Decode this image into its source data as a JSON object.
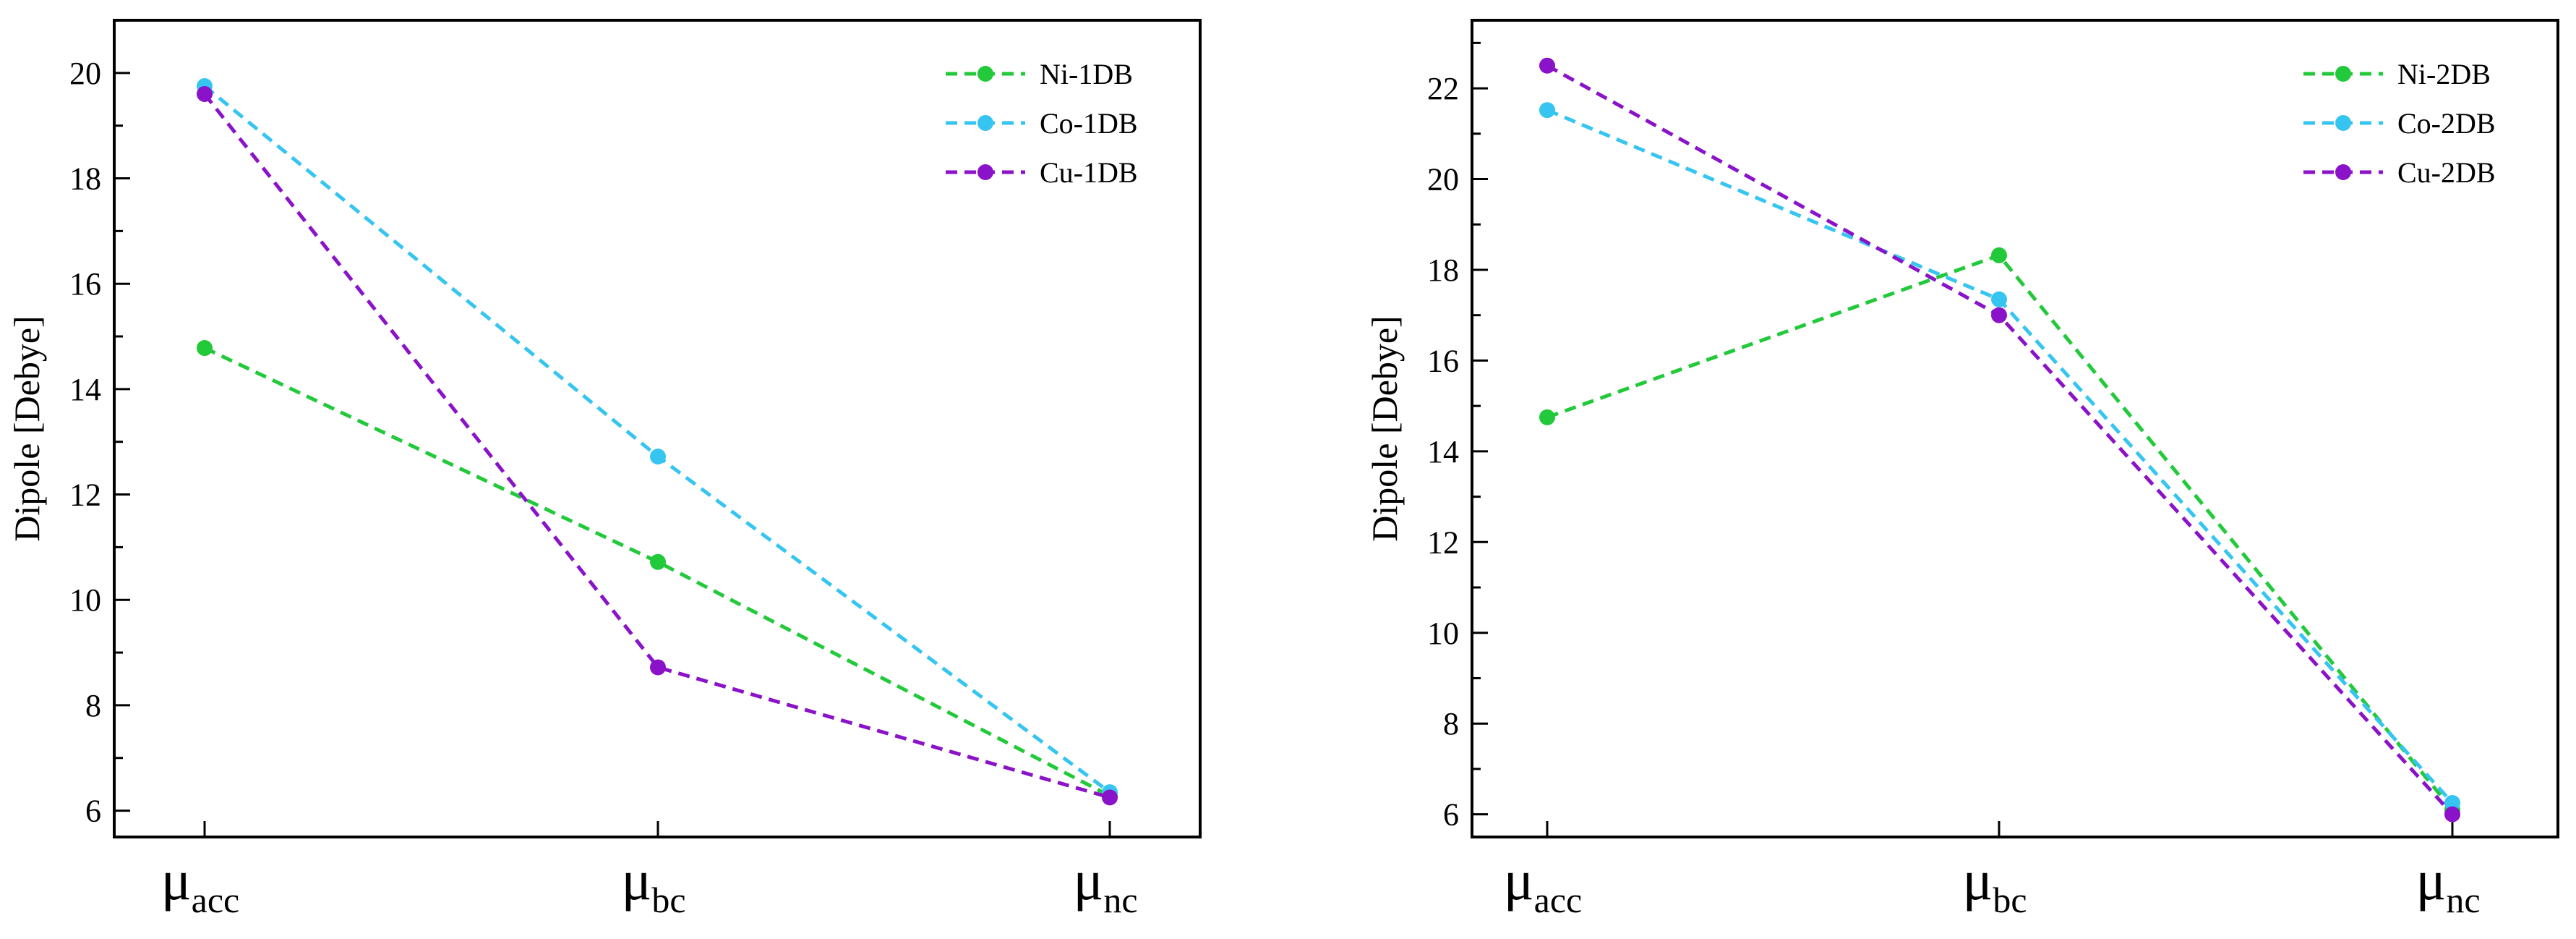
{
  "chart_data": [
    {
      "type": "line",
      "categories": [
        {
          "symbol": "μ",
          "sub": "acc"
        },
        {
          "symbol": "μ",
          "sub": "bc"
        },
        {
          "symbol": "μ",
          "sub": "nc"
        }
      ],
      "ylabel": "Dipole [Debye]",
      "ylim": [
        5.5,
        21
      ],
      "yticks": [
        6,
        8,
        10,
        12,
        14,
        16,
        18,
        20
      ],
      "legend_position": "top-right",
      "line_style": "dashed",
      "series": [
        {
          "name": "Ni-1DB",
          "color": "#22c93a",
          "values": [
            14.78,
            10.72,
            6.28
          ]
        },
        {
          "name": "Co-1DB",
          "color": "#36c5f0",
          "values": [
            19.75,
            12.72,
            6.35
          ]
        },
        {
          "name": "Cu-1DB",
          "color": "#8a12c9",
          "values": [
            19.6,
            8.72,
            6.25
          ]
        }
      ]
    },
    {
      "type": "line",
      "categories": [
        {
          "symbol": "μ",
          "sub": "acc"
        },
        {
          "symbol": "μ",
          "sub": "bc"
        },
        {
          "symbol": "μ",
          "sub": "nc"
        }
      ],
      "ylabel": "Dipole [Debye]",
      "ylim": [
        5.5,
        23.5
      ],
      "yticks": [
        6,
        8,
        10,
        12,
        14,
        16,
        18,
        20,
        22
      ],
      "legend_position": "top-right",
      "line_style": "dashed",
      "series": [
        {
          "name": "Ni-2DB",
          "color": "#22c93a",
          "values": [
            14.75,
            18.32,
            6.1
          ]
        },
        {
          "name": "Co-2DB",
          "color": "#36c5f0",
          "values": [
            21.52,
            17.35,
            6.25
          ]
        },
        {
          "name": "Cu-2DB",
          "color": "#8a12c9",
          "values": [
            22.5,
            17.0,
            6.0
          ]
        }
      ]
    }
  ]
}
